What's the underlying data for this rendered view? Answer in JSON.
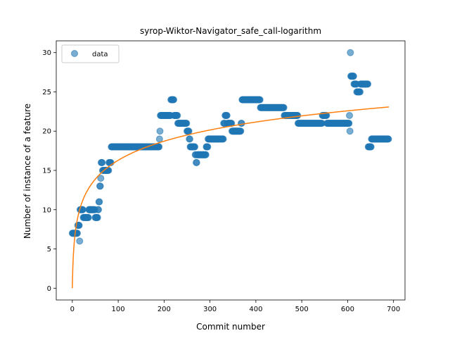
{
  "chart_data": {
    "type": "scatter",
    "title": "syrop-Wiktor-Navigator_safe_call-logarithm",
    "xlabel": "Commit number",
    "ylabel": "Number of instance of a feature",
    "xlim": [
      -35,
      725
    ],
    "ylim": [
      -1.5,
      31.5
    ],
    "xticks": [
      0,
      100,
      200,
      300,
      400,
      500,
      600,
      700
    ],
    "yticks": [
      0,
      5,
      10,
      15,
      20,
      25,
      30
    ],
    "grid": false,
    "legend": {
      "placement": "top-left",
      "entries": [
        "data"
      ]
    },
    "colors": {
      "data": "#1f77b4",
      "fit": "#ff7f0e"
    },
    "series": [
      {
        "name": "data",
        "kind": "scatter",
        "segments": [
          [
            0,
            12,
            7
          ],
          [
            12,
            16,
            8
          ],
          [
            16,
            17,
            6
          ],
          [
            17,
            24,
            10
          ],
          [
            24,
            30,
            9
          ],
          [
            30,
            36,
            9
          ],
          [
            36,
            50,
            10
          ],
          [
            50,
            56,
            9
          ],
          [
            56,
            58,
            10
          ],
          [
            58,
            60,
            11
          ],
          [
            60,
            62,
            13
          ],
          [
            62,
            63,
            14
          ],
          [
            63,
            66,
            16
          ],
          [
            66,
            70,
            15
          ],
          [
            70,
            80,
            15
          ],
          [
            80,
            85,
            16
          ],
          [
            85,
            190,
            18
          ],
          [
            190,
            191,
            19
          ],
          [
            191,
            192,
            20
          ],
          [
            192,
            215,
            22
          ],
          [
            215,
            222,
            24
          ],
          [
            222,
            230,
            22
          ],
          [
            230,
            250,
            21
          ],
          [
            250,
            255,
            20
          ],
          [
            255,
            257,
            19
          ],
          [
            257,
            268,
            18
          ],
          [
            268,
            270,
            17
          ],
          [
            270,
            272,
            16
          ],
          [
            272,
            292,
            17
          ],
          [
            292,
            296,
            18
          ],
          [
            296,
            330,
            19
          ],
          [
            330,
            333,
            21
          ],
          [
            333,
            338,
            22
          ],
          [
            338,
            348,
            21
          ],
          [
            348,
            368,
            20
          ],
          [
            368,
            370,
            21
          ],
          [
            370,
            410,
            24
          ],
          [
            410,
            462,
            23
          ],
          [
            462,
            492,
            22
          ],
          [
            492,
            545,
            21
          ],
          [
            545,
            555,
            22
          ],
          [
            555,
            604,
            21
          ],
          [
            604,
            605,
            22
          ],
          [
            605,
            606,
            20
          ],
          [
            606,
            607,
            30
          ],
          [
            607,
            614,
            27
          ],
          [
            614,
            620,
            26
          ],
          [
            620,
            628,
            25
          ],
          [
            628,
            645,
            26
          ],
          [
            645,
            652,
            18
          ],
          [
            652,
            690,
            19
          ]
        ]
      },
      {
        "name": "",
        "kind": "line",
        "fit": {
          "model": "a*ln(x+1)",
          "a": 3.53
        },
        "x_range": [
          0,
          690
        ]
      }
    ]
  }
}
